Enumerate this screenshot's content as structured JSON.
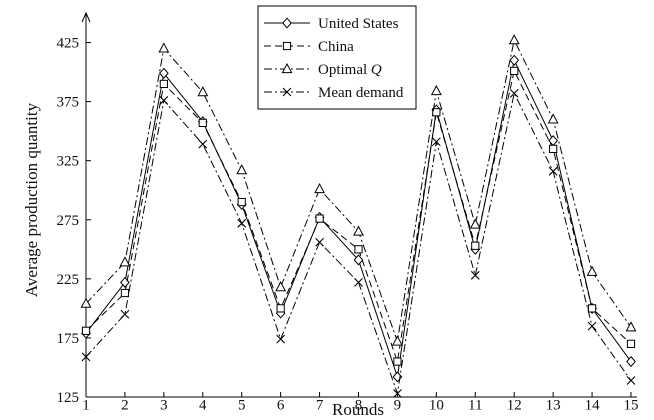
{
  "chart_data": {
    "type": "line",
    "xlabel": "Rounds",
    "ylabel": "Average production quantity",
    "xlim": [
      1,
      15
    ],
    "ylim": [
      125,
      450
    ],
    "x": [
      1,
      2,
      3,
      4,
      5,
      6,
      7,
      8,
      9,
      10,
      11,
      12,
      13,
      14,
      15
    ],
    "xticks": [
      "1",
      "2",
      "3",
      "4",
      "5",
      "6",
      "7",
      "8",
      "9",
      "10",
      "11",
      "12",
      "13",
      "14",
      "15"
    ],
    "yticks": [
      "125",
      "175",
      "225",
      "275",
      "325",
      "375",
      "425"
    ],
    "legend_position": "top-center",
    "grid": false,
    "series": [
      {
        "name": "United States",
        "label_prefix": "United States",
        "label_italic": "",
        "marker": "diamond",
        "dash": "solid",
        "values": [
          179,
          222,
          399,
          358,
          288,
          196,
          277,
          241,
          142,
          368,
          250,
          410,
          342,
          200,
          155
        ]
      },
      {
        "name": "China",
        "label_prefix": "China",
        "label_italic": "",
        "marker": "square",
        "dash": "dashed",
        "values": [
          181,
          213,
          390,
          357,
          290,
          200,
          276,
          250,
          155,
          366,
          253,
          401,
          335,
          200,
          170
        ]
      },
      {
        "name": "Optimal Q",
        "label_prefix": "Optimal ",
        "label_italic": "Q",
        "marker": "triangle",
        "dash": "dashdot",
        "values": [
          204,
          239,
          420,
          383,
          317,
          218,
          301,
          265,
          172,
          384,
          271,
          427,
          360,
          231,
          184
        ]
      },
      {
        "name": "Mean demand",
        "label_prefix": "Mean demand",
        "label_italic": "",
        "marker": "x",
        "dash": "dashdot",
        "values": [
          159,
          195,
          376,
          339,
          272,
          174,
          256,
          222,
          128,
          341,
          228,
          382,
          316,
          185,
          139
        ]
      }
    ]
  }
}
